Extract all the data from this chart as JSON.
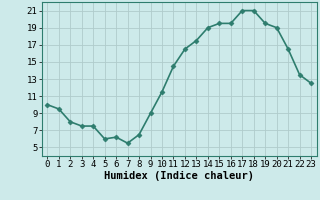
{
  "x": [
    0,
    1,
    2,
    3,
    4,
    5,
    6,
    7,
    8,
    9,
    10,
    11,
    12,
    13,
    14,
    15,
    16,
    17,
    18,
    19,
    20,
    21,
    22,
    23
  ],
  "y": [
    10,
    9.5,
    8,
    7.5,
    7.5,
    6,
    6.2,
    5.5,
    6.5,
    9,
    11.5,
    14.5,
    16.5,
    17.5,
    19,
    19.5,
    19.5,
    21,
    21,
    19.5,
    19,
    16.5,
    13.5,
    12.5
  ],
  "line_color": "#2e7d6e",
  "marker": "D",
  "marker_size": 2.5,
  "bg_color": "#cdeaea",
  "grid_color": "#b0cccc",
  "xlabel": "Humidex (Indice chaleur)",
  "ylabel": "",
  "xlim": [
    -0.5,
    23.5
  ],
  "ylim": [
    4,
    22
  ],
  "yticks": [
    5,
    7,
    9,
    11,
    13,
    15,
    17,
    19,
    21
  ],
  "xticks": [
    0,
    1,
    2,
    3,
    4,
    5,
    6,
    7,
    8,
    9,
    10,
    11,
    12,
    13,
    14,
    15,
    16,
    17,
    18,
    19,
    20,
    21,
    22,
    23
  ],
  "xlabel_fontsize": 7.5,
  "tick_fontsize": 6.5,
  "line_width": 1.2
}
